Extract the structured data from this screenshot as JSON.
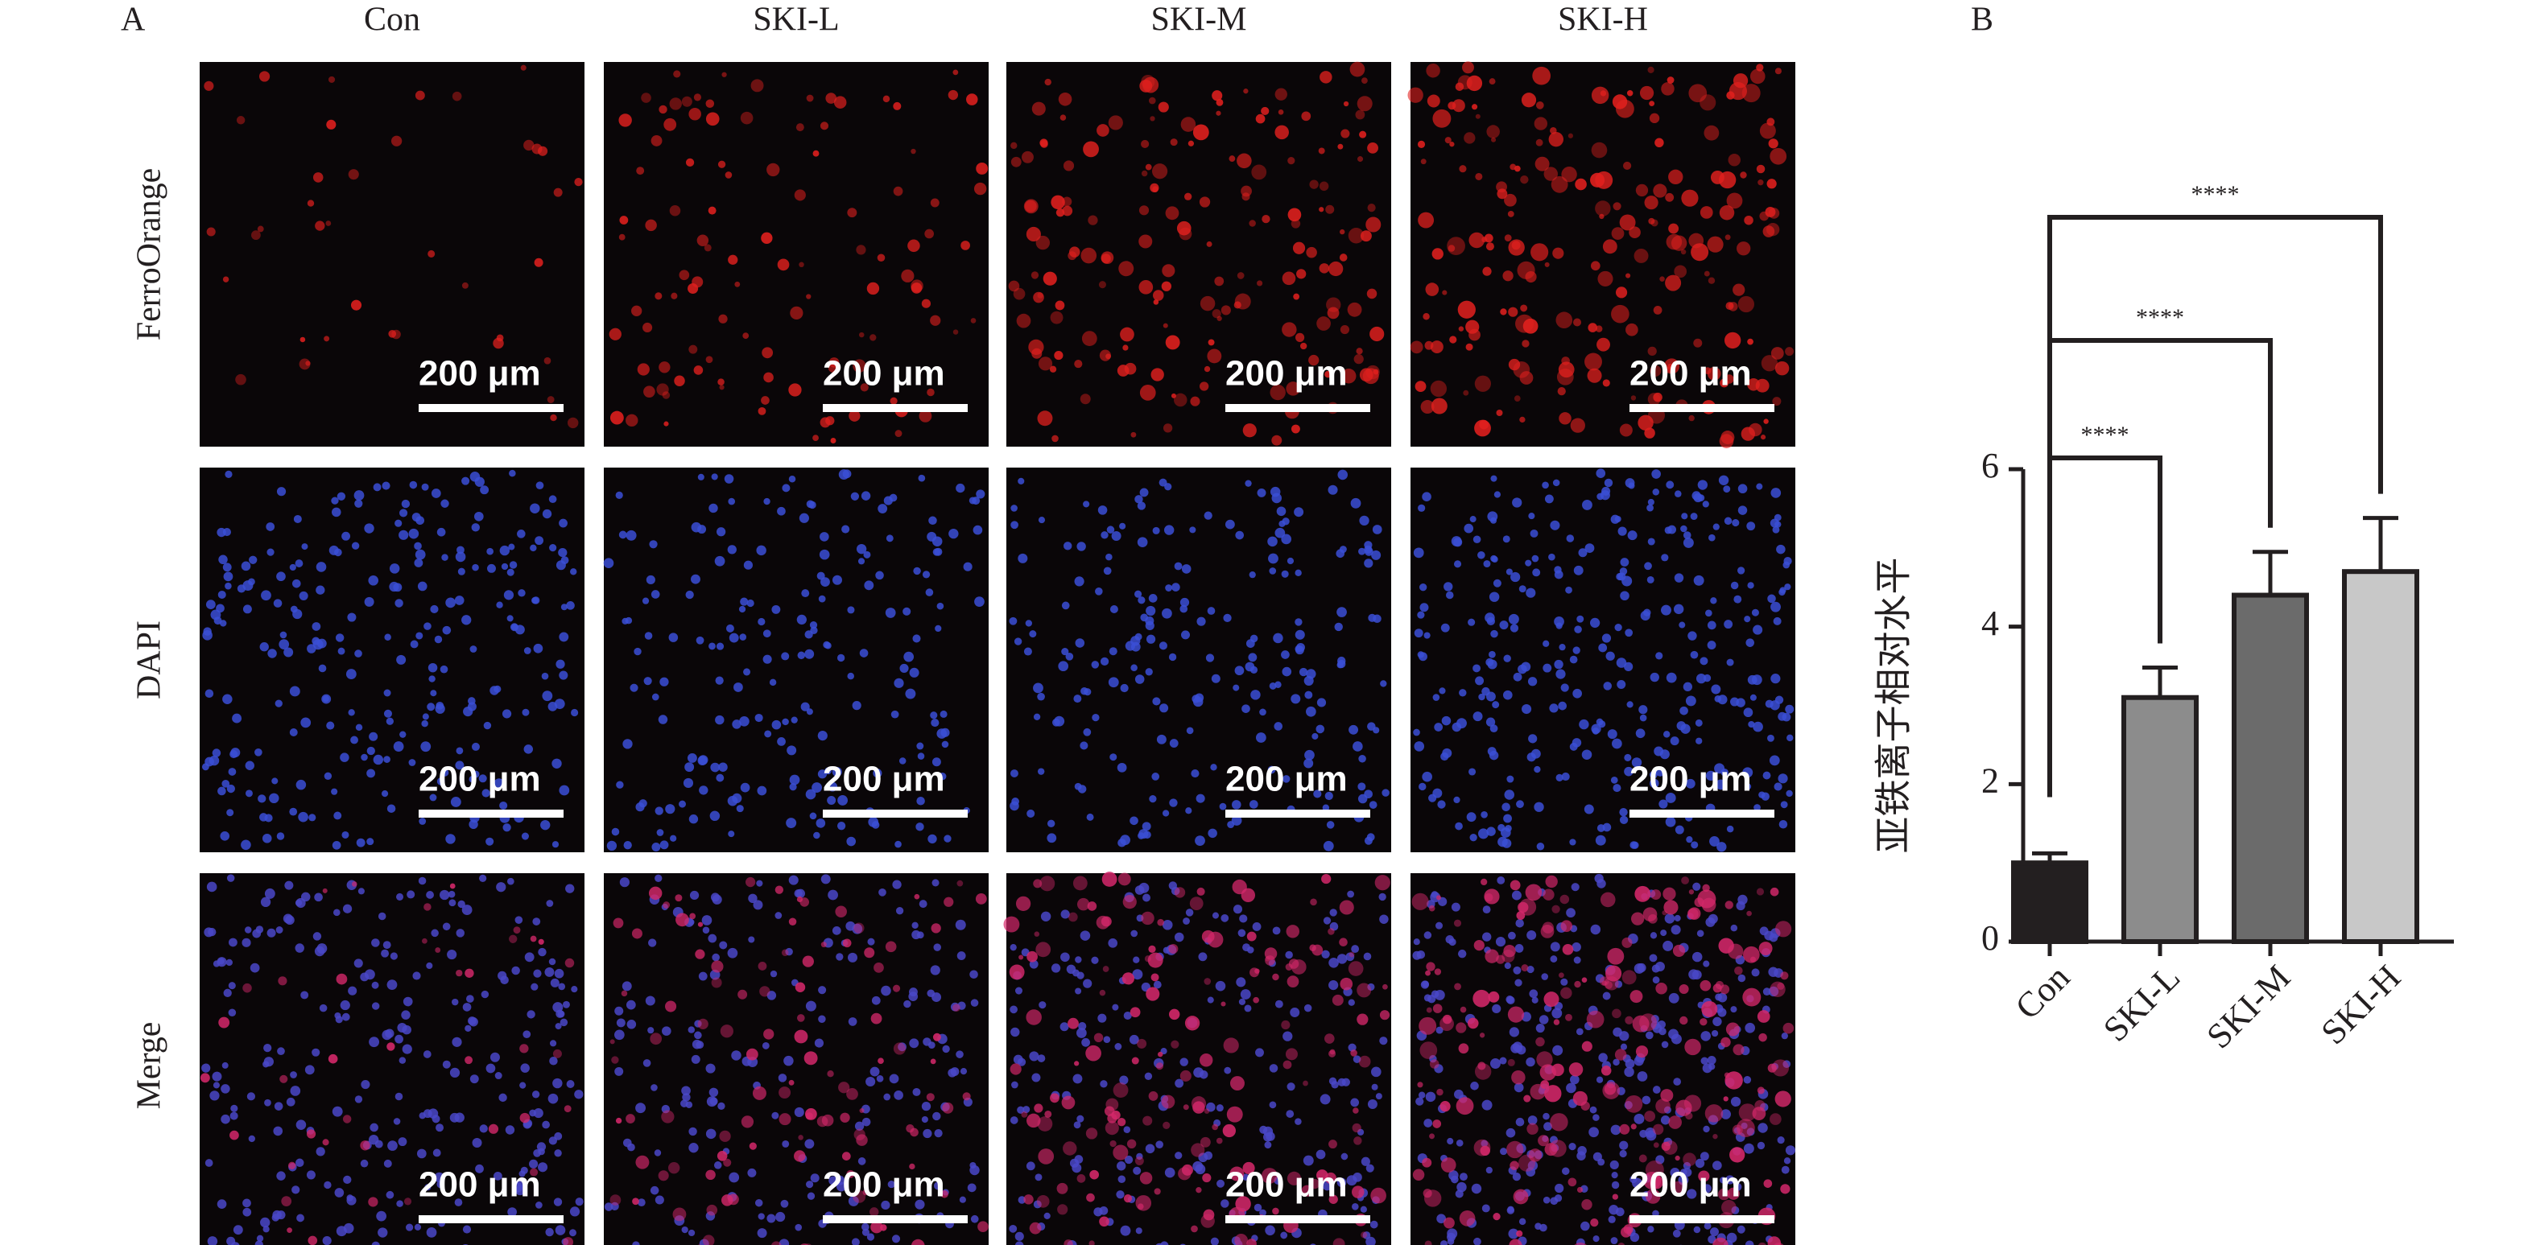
{
  "panel_a": {
    "label": "A",
    "columns": [
      "Con",
      "SKI-L",
      "SKI-M",
      "SKI-H"
    ],
    "rows": [
      "FerroOrange",
      "DAPI",
      "Merge"
    ],
    "scale_bar": "200 μm"
  },
  "chart_data": {
    "type": "bar",
    "label": "B",
    "ylabel": "亚铁离子相对水平",
    "categories": [
      "Con",
      "SKI-L",
      "SKI-M",
      "SKI-H"
    ],
    "values": [
      1.0,
      3.1,
      4.4,
      4.7
    ],
    "errors": [
      0.12,
      0.38,
      0.55,
      0.68
    ],
    "colors": [
      "#231f20",
      "#8c8c8c",
      "#6b6b6b",
      "#c8c8c8"
    ],
    "ylim": [
      0,
      6
    ],
    "yticks": [
      0,
      2,
      4,
      6
    ],
    "comparisons": [
      {
        "from": 0,
        "to": 1,
        "label": "****"
      },
      {
        "from": 0,
        "to": 2,
        "label": "****"
      },
      {
        "from": 0,
        "to": 3,
        "label": "****"
      }
    ]
  }
}
